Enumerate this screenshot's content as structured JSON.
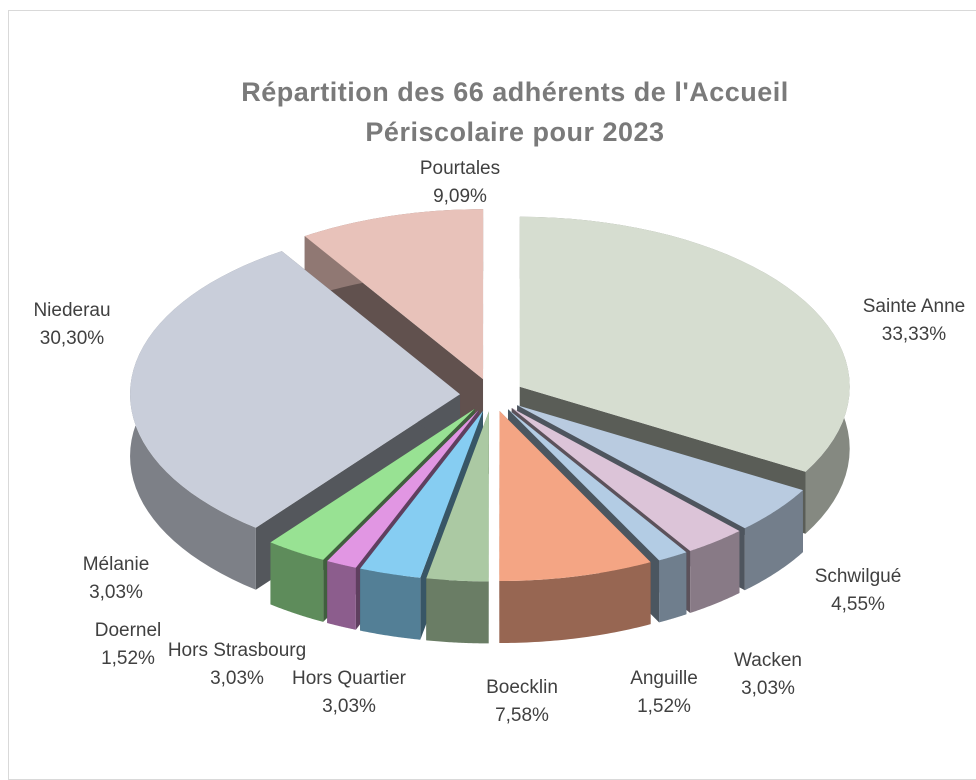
{
  "chart_data": {
    "type": "pie3d",
    "title": "Répartition des 66 adhérents de l'Accueil Périscolaire pour 2023",
    "categories": [
      "Pourtales",
      "Sainte Anne",
      "Schwilgué",
      "Wacken",
      "Anguille",
      "Boecklin",
      "Hors Quartier",
      "Hors Strasbourg",
      "Doernel",
      "Mélanie",
      "Niederau"
    ],
    "values": [
      9.09,
      33.33,
      4.55,
      3.03,
      1.52,
      7.58,
      3.03,
      3.03,
      1.52,
      3.03,
      30.3
    ],
    "value_labels": [
      "9,09%",
      "33,33%",
      "4,55%",
      "3,03%",
      "1,52%",
      "7,58%",
      "3,03%",
      "3,03%",
      "1,52%",
      "3,03%",
      "30,30%"
    ],
    "colors": [
      "#e8c2ba",
      "#d6ddd0",
      "#b9cbe0",
      "#dcc4d8",
      "#b3cce4",
      "#f4a584",
      "#abc9a3",
      "#86cdf2",
      "#e196e3",
      "#98e293",
      "#c9ceda"
    ]
  }
}
